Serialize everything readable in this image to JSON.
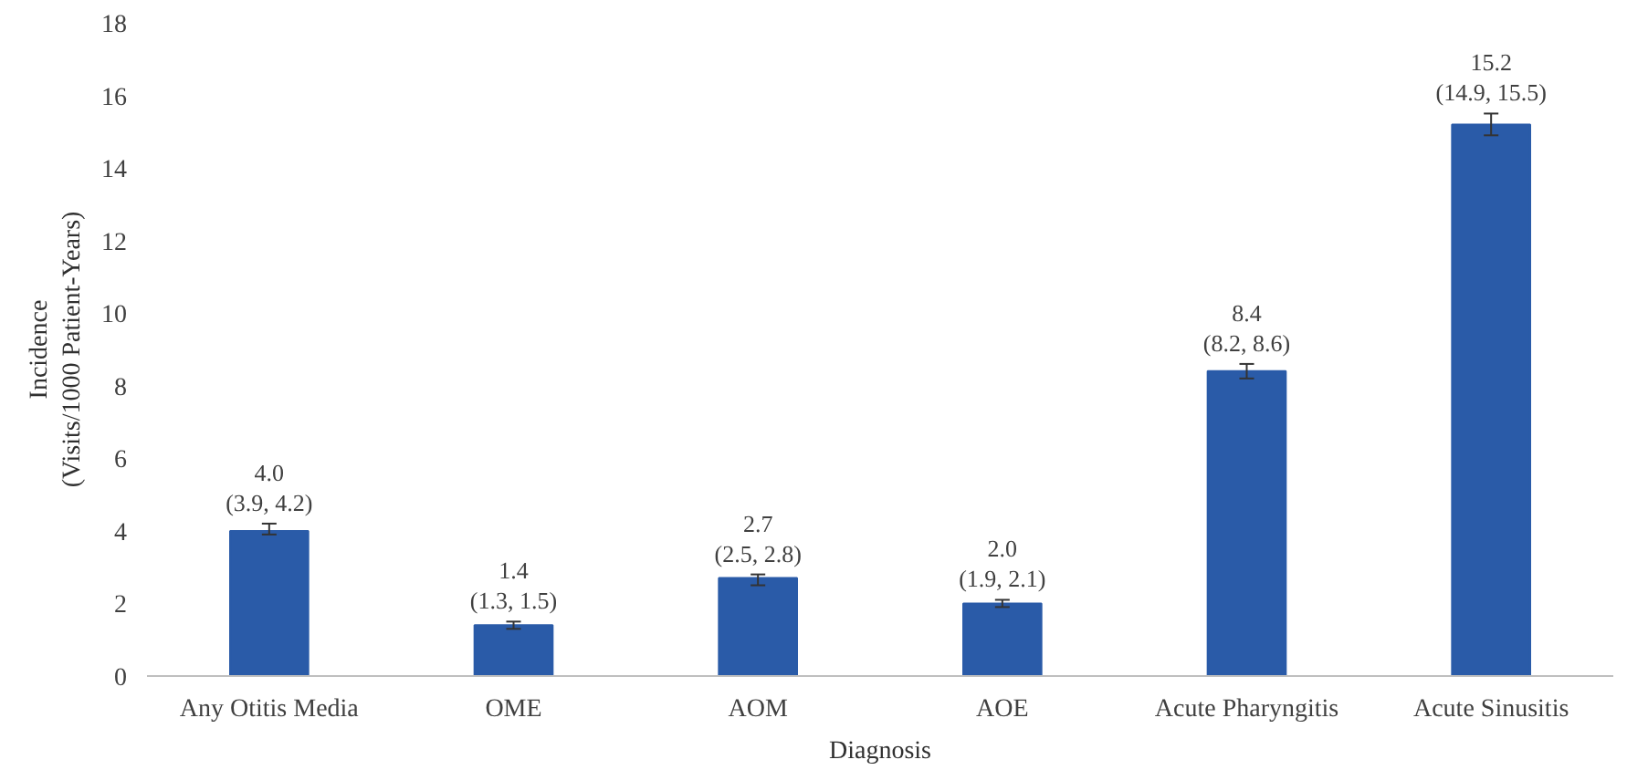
{
  "chart_data": {
    "type": "bar",
    "xlabel": "Diagnosis",
    "ylabel": "Incidence\n(Visits/1000 Patient-Years)",
    "categories": [
      "Any Otitis Media",
      "OME",
      "AOM",
      "AOE",
      "Acute Pharyngitis",
      "Acute Sinusitis"
    ],
    "values": [
      4.0,
      1.4,
      2.7,
      2.0,
      8.4,
      15.2
    ],
    "errors": [
      [
        3.9,
        4.2
      ],
      [
        1.3,
        1.5
      ],
      [
        2.5,
        2.8
      ],
      [
        1.9,
        2.1
      ],
      [
        8.2,
        8.6
      ],
      [
        14.9,
        15.5
      ]
    ],
    "value_labels": [
      "4.0\n(3.9, 4.2)",
      "1.4\n(1.3, 1.5)",
      "2.7\n(2.5, 2.8)",
      "2.0\n(1.9, 2.1)",
      "8.4\n(8.2, 8.6)",
      "15.2\n(14.9, 15.5)"
    ],
    "color": "#2a5ba8",
    "ylim": [
      0,
      18
    ],
    "yticks": [
      0,
      2,
      4,
      6,
      8,
      10,
      12,
      14,
      16,
      18
    ],
    "grid": false
  }
}
